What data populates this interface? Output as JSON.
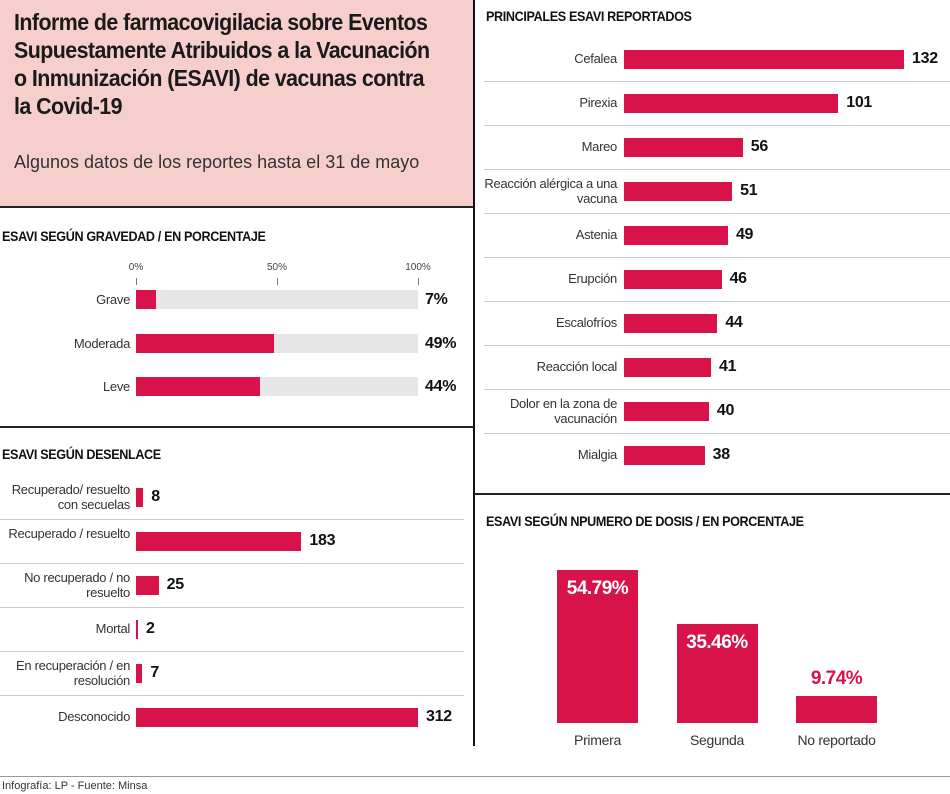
{
  "header": {
    "title": "Informe de farmacovigilacia sobre Eventos Supuestamente Atribuidos a la Vacunación o Inmunización (ESAVI) de vacunas contra la Covid-19",
    "subtitle": "Algunos datos de los reportes hasta el 31 de mayo"
  },
  "footer": "Infografía: LP - Fuente: Minsa",
  "colors": {
    "bar": "#d7134a",
    "track": "#e6e6e6",
    "header_bg": "#f6cfcc"
  },
  "chart_data": [
    {
      "type": "bar",
      "orientation": "horizontal",
      "title": "ESAVI SEGÚN GRAVEDAD / EN PORCENTAJE",
      "categories": [
        "Grave",
        "Moderada",
        "Leve"
      ],
      "values": [
        7,
        49,
        44
      ],
      "value_labels": [
        "7%",
        "49%",
        "44%"
      ],
      "ticks": [
        "0%",
        "50%",
        "100%"
      ],
      "xlim": [
        0,
        100
      ]
    },
    {
      "type": "bar",
      "orientation": "horizontal",
      "title": "ESAVI SEGÚN DESENLACE",
      "categories": [
        "Recuperado/ resuelto con secuelas",
        "Recuperado / resuelto",
        "No recuperado / no resuelto",
        "Mortal",
        "En recuperación / en resolución",
        "Desconocido"
      ],
      "values": [
        8,
        183,
        25,
        2,
        7,
        312
      ]
    },
    {
      "type": "bar",
      "orientation": "horizontal",
      "title": "PRINCIPALES ESAVI REPORTADOS",
      "categories": [
        "Cefalea",
        "Pirexia",
        "Mareo",
        "Reacción alérgica a una vacuna",
        "Astenia",
        "Erupción",
        "Escalofríos",
        "Reacción local",
        "Dolor en la zona de vacunación",
        "Mialgia"
      ],
      "values": [
        132,
        101,
        56,
        51,
        49,
        46,
        44,
        41,
        40,
        38
      ]
    },
    {
      "type": "bar",
      "orientation": "vertical",
      "title": "ESAVI SEGÚN NPUMERO DE DOSIS / EN PORCENTAJE",
      "categories": [
        "Primera",
        "Segunda",
        "No reportado"
      ],
      "values": [
        54.79,
        35.46,
        9.74
      ],
      "value_labels": [
        "54.79%",
        "35.46%",
        "9.74%"
      ]
    }
  ]
}
